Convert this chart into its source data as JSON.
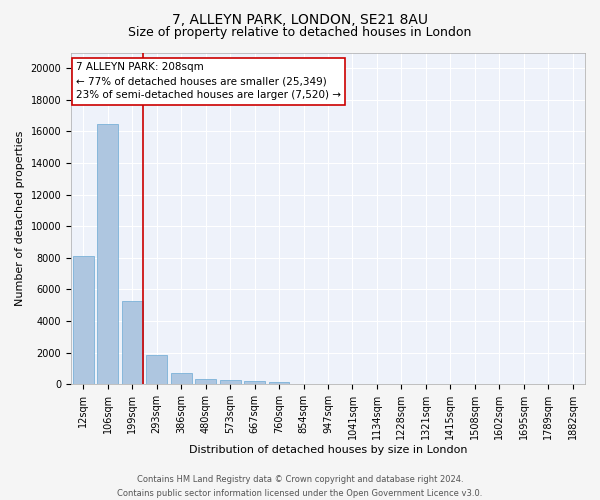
{
  "title1": "7, ALLEYN PARK, LONDON, SE21 8AU",
  "title2": "Size of property relative to detached houses in London",
  "xlabel": "Distribution of detached houses by size in London",
  "ylabel": "Number of detached properties",
  "categories": [
    "12sqm",
    "106sqm",
    "199sqm",
    "293sqm",
    "386sqm",
    "480sqm",
    "573sqm",
    "667sqm",
    "760sqm",
    "854sqm",
    "947sqm",
    "1041sqm",
    "1134sqm",
    "1228sqm",
    "1321sqm",
    "1415sqm",
    "1508sqm",
    "1602sqm",
    "1695sqm",
    "1789sqm",
    "1882sqm"
  ],
  "values": [
    8100,
    16500,
    5300,
    1850,
    700,
    350,
    260,
    200,
    160,
    0,
    0,
    0,
    0,
    0,
    0,
    0,
    0,
    0,
    0,
    0,
    0
  ],
  "bar_color": "#aec6e0",
  "bar_edge_color": "#6aaad4",
  "property_bin_index": 2,
  "annotation_text": "7 ALLEYN PARK: 208sqm\n← 77% of detached houses are smaller (25,349)\n23% of semi-detached houses are larger (7,520) →",
  "vline_color": "#cc0000",
  "box_edgecolor": "#cc0000",
  "ylim": [
    0,
    21000
  ],
  "yticks": [
    0,
    2000,
    4000,
    6000,
    8000,
    10000,
    12000,
    14000,
    16000,
    18000,
    20000
  ],
  "footer1": "Contains HM Land Registry data © Crown copyright and database right 2024.",
  "footer2": "Contains public sector information licensed under the Open Government Licence v3.0.",
  "background_color": "#eef2fa",
  "grid_color": "#ffffff",
  "fig_facecolor": "#f5f5f5",
  "title_fontsize": 10,
  "subtitle_fontsize": 9,
  "axis_label_fontsize": 8,
  "tick_fontsize": 7,
  "annotation_fontsize": 7.5,
  "footer_fontsize": 6
}
